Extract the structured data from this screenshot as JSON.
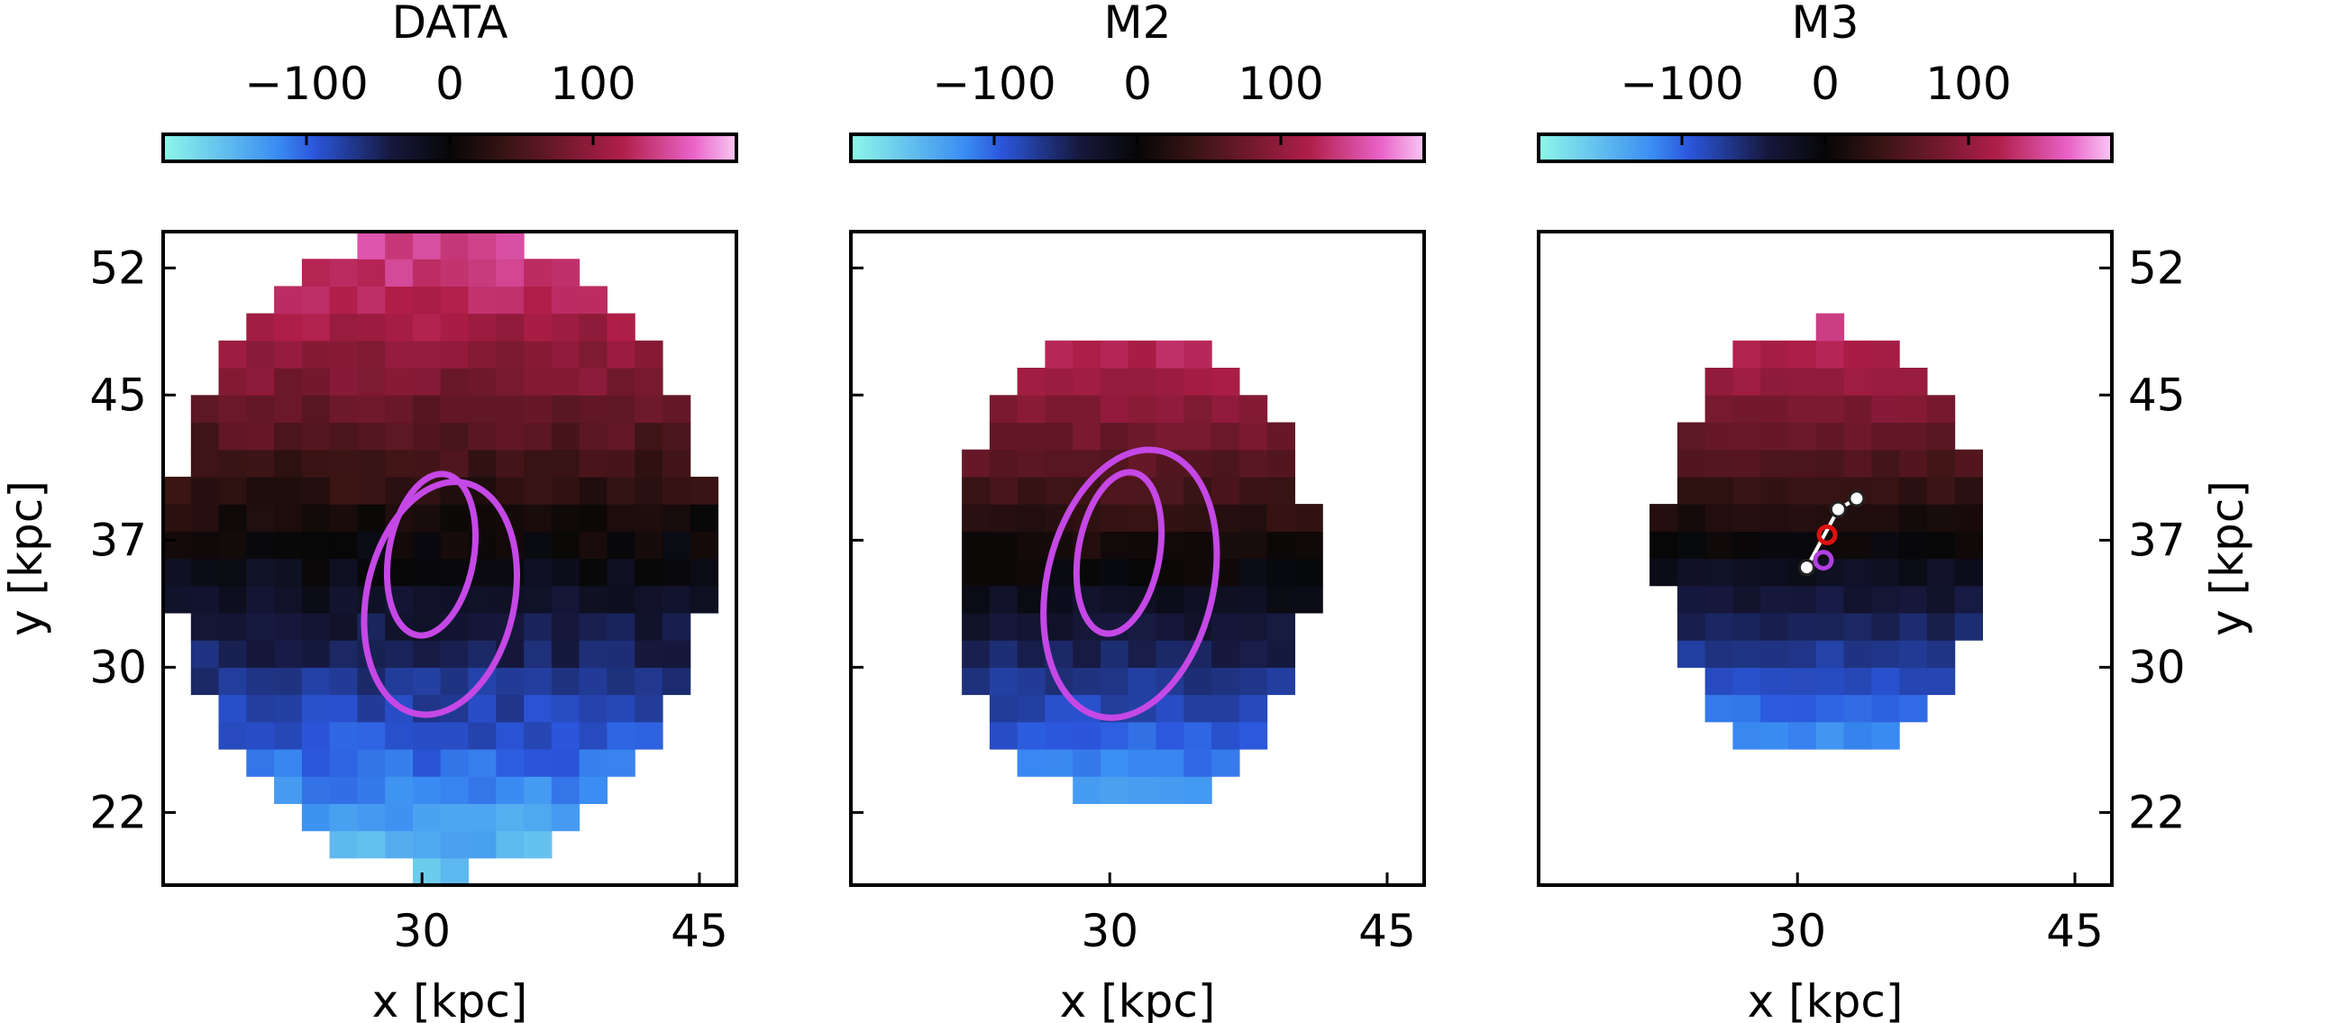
{
  "figure": {
    "colors": {
      "axis": "#000000",
      "ellipse": "#c548e6",
      "path_line": "#ffffff",
      "marker_red": "#e01010",
      "marker_purple": "#b040e0",
      "marker_white_fill": "#ffffff",
      "marker_white_edge": "#222222"
    },
    "colormap_stops": [
      {
        "v": -200,
        "color": "#8ff7ea"
      },
      {
        "v": -120,
        "color": "#3a8cf2"
      },
      {
        "v": -95,
        "color": "#2b56dc"
      },
      {
        "v": -40,
        "color": "#16183c"
      },
      {
        "v": 0,
        "color": "#070707"
      },
      {
        "v": 40,
        "color": "#3a1414"
      },
      {
        "v": 120,
        "color": "#b01e48"
      },
      {
        "v": 170,
        "color": "#ea63c8"
      },
      {
        "v": 200,
        "color": "#f8c8f4"
      }
    ]
  },
  "chart_data": [
    {
      "type": "heatmap",
      "title": "DATA",
      "xlabel": "x [kpc]",
      "ylabel": "y [kpc]",
      "ylabel_side": "left",
      "xlim": [
        16,
        47
      ],
      "ylim": [
        18,
        54
      ],
      "xticks": [
        30,
        45
      ],
      "yticks": [
        22,
        30,
        37,
        45,
        52
      ],
      "ytick_labels_shown": true,
      "colorbar": {
        "label": "DATA",
        "range": [
          -200,
          200
        ],
        "ticks": [
          -100,
          0,
          100
        ],
        "tick_labels": [
          "−100",
          "0",
          "100"
        ]
      },
      "map": {
        "cell_size_kpc": 1.5,
        "center": [
          31.0,
          36.5
        ],
        "semi_x": 14.5,
        "semi_y": 17.8,
        "velocity_gradient": 9.0,
        "velocity_max": 195,
        "velocity_min": -195,
        "noise": 14
      },
      "ellipses": [
        {
          "cx": 31.0,
          "cy": 33.8,
          "rx": 4.0,
          "ry": 6.5,
          "angle_deg": 12
        },
        {
          "cx": 30.5,
          "cy": 36.2,
          "rx": 2.3,
          "ry": 4.5,
          "angle_deg": 10
        }
      ]
    },
    {
      "type": "heatmap",
      "title": "M2",
      "xlabel": "x [kpc]",
      "ylabel": "",
      "ylabel_side": "none",
      "xlim": [
        16,
        47
      ],
      "ylim": [
        18,
        54
      ],
      "xticks": [
        30,
        45
      ],
      "yticks": [
        22,
        30,
        37,
        45,
        52
      ],
      "ytick_labels_shown": false,
      "colorbar": {
        "label": "M2",
        "range": [
          -200,
          200
        ],
        "ticks": [
          -100,
          0,
          100
        ],
        "tick_labels": [
          "−100",
          "0",
          "100"
        ]
      },
      "map": {
        "cell_size_kpc": 1.5,
        "center": [
          31.2,
          35.5
        ],
        "semi_x": 9.8,
        "semi_y": 13.2,
        "velocity_gradient": 10.5,
        "velocity_max": 195,
        "velocity_min": -195,
        "noise": 10
      },
      "ellipses": [
        {
          "cx": 31.1,
          "cy": 34.6,
          "rx": 4.5,
          "ry": 7.5,
          "angle_deg": 13
        },
        {
          "cx": 30.5,
          "cy": 36.3,
          "rx": 2.2,
          "ry": 4.5,
          "angle_deg": 10
        }
      ]
    },
    {
      "type": "heatmap",
      "title": "M3",
      "xlabel": "x [kpc]",
      "ylabel": "y [kpc]",
      "ylabel_side": "right",
      "xlim": [
        16,
        47
      ],
      "ylim": [
        18,
        54
      ],
      "xticks": [
        30,
        45
      ],
      "yticks": [
        22,
        30,
        37,
        45,
        52
      ],
      "ytick_labels_shown": true,
      "colorbar": {
        "label": "M3",
        "range": [
          -200,
          200
        ],
        "ticks": [
          -100,
          0,
          100
        ],
        "tick_labels": [
          "−100",
          "0",
          "100"
        ]
      },
      "map": {
        "cell_size_kpc": 1.5,
        "center": [
          31.3,
          36.8
        ],
        "semi_x": 8.8,
        "semi_y": 12.0,
        "velocity_gradient": 11.5,
        "velocity_max": 195,
        "velocity_min": -195,
        "noise": 8
      },
      "ellipses": [],
      "path": {
        "points": [
          [
            30.5,
            35.5
          ],
          [
            32.2,
            38.7
          ],
          [
            33.2,
            39.3
          ]
        ],
        "markers": [
          {
            "x": 30.5,
            "y": 35.5,
            "kind": "white"
          },
          {
            "x": 32.2,
            "y": 38.7,
            "kind": "white"
          },
          {
            "x": 33.2,
            "y": 39.3,
            "kind": "white"
          },
          {
            "x": 31.6,
            "y": 37.3,
            "kind": "red"
          },
          {
            "x": 31.4,
            "y": 35.9,
            "kind": "purple"
          }
        ]
      }
    }
  ]
}
